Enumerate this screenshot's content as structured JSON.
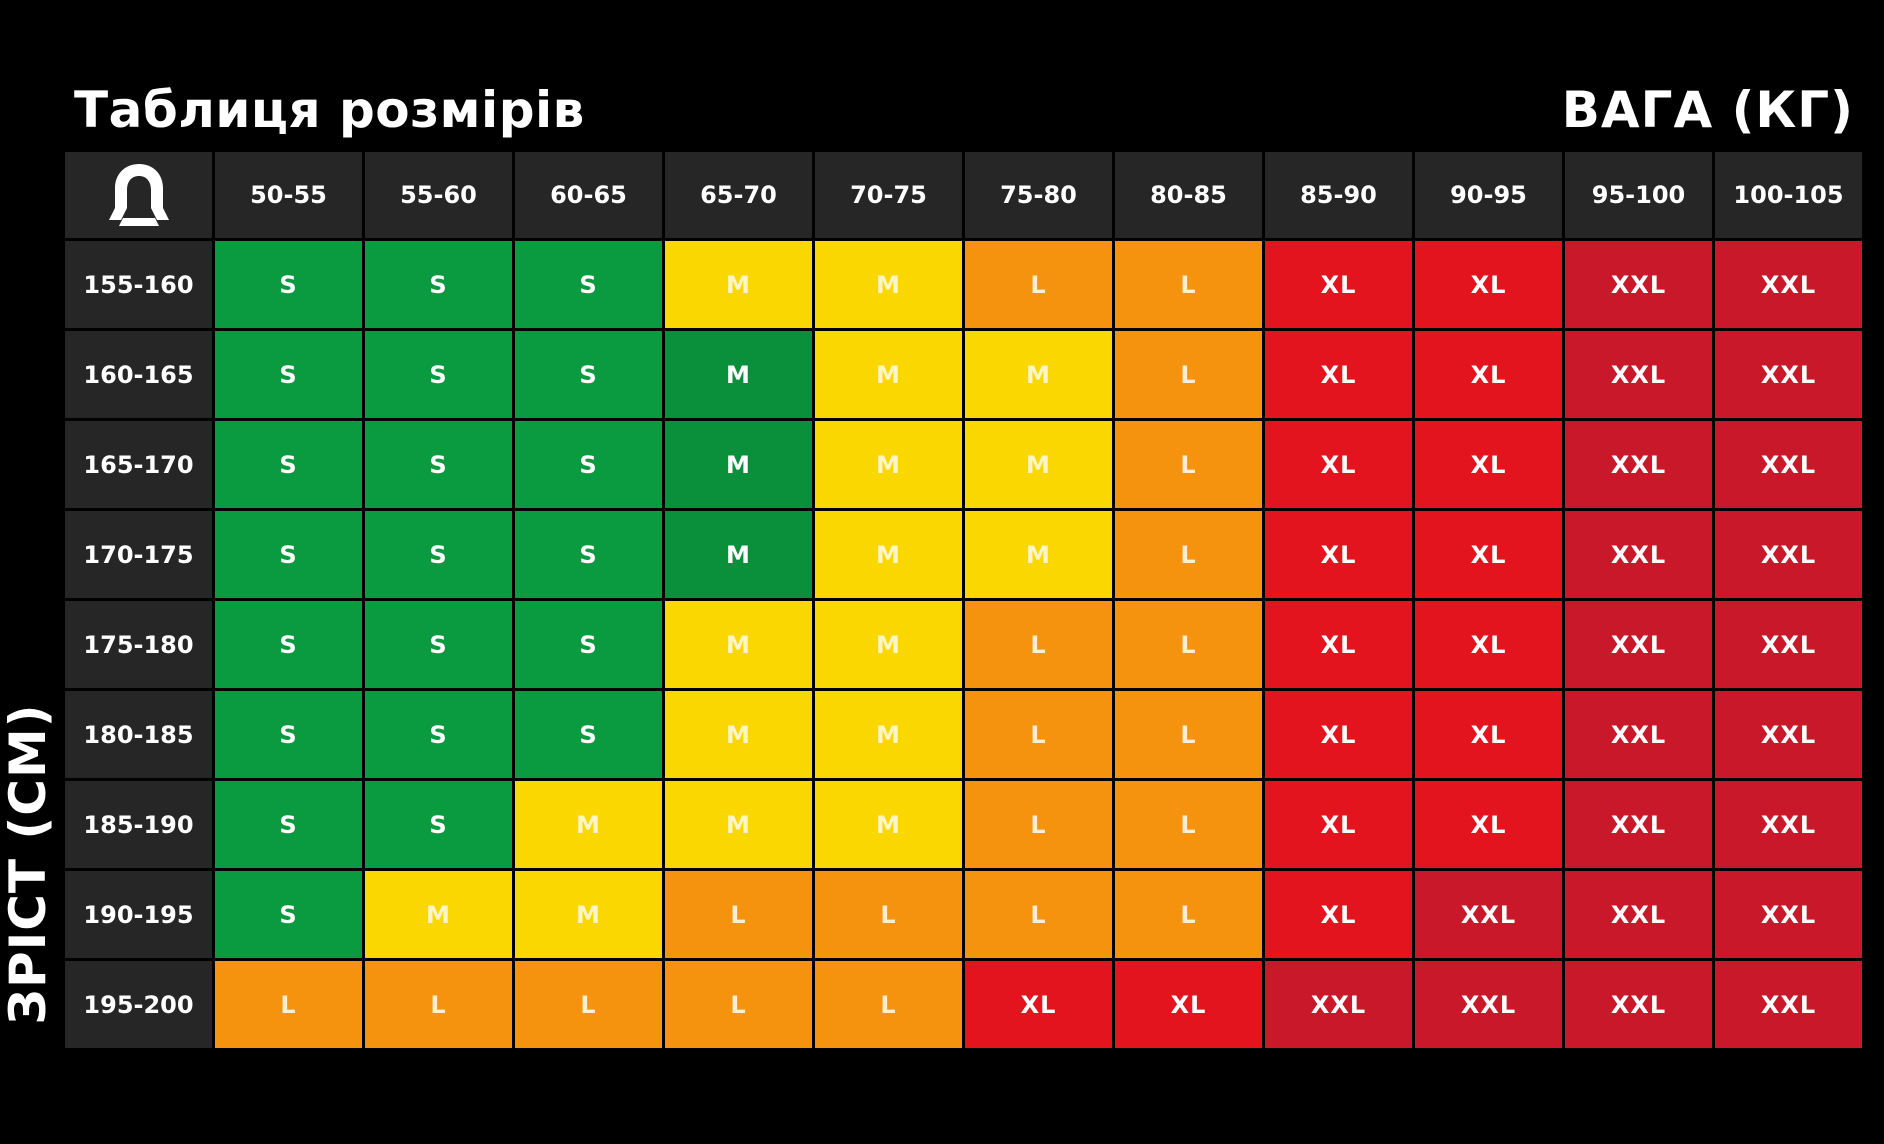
{
  "title": "Таблиця розмірів",
  "weight_label": "ВАГА (КГ)",
  "height_label": "ЗРІСТ (СМ)",
  "icon": "brand-logo-icon",
  "colors": {
    "S": "#0a9a3f",
    "M": "#fbd700",
    "L": "#f5930f",
    "XL": "#e3141e",
    "XXL": "#c8182a",
    "header": "#262626",
    "background": "#000000"
  },
  "weights": [
    "50-55",
    "55-60",
    "60-65",
    "65-70",
    "70-75",
    "75-80",
    "80-85",
    "85-90",
    "90-95",
    "95-100",
    "100-105"
  ],
  "rows": [
    {
      "height": "155-160",
      "sizes": [
        "S",
        "S",
        "S",
        "M",
        "M",
        "L",
        "L",
        "XL",
        "XL",
        "XXL",
        "XXL"
      ]
    },
    {
      "height": "160-165",
      "sizes": [
        "S",
        "S",
        "S",
        "M",
        "M",
        "M",
        "L",
        "XL",
        "XL",
        "XXL",
        "XXL"
      ]
    },
    {
      "height": "165-170",
      "sizes": [
        "S",
        "S",
        "S",
        "M",
        "M",
        "M",
        "L",
        "XL",
        "XL",
        "XXL",
        "XXL"
      ]
    },
    {
      "height": "170-175",
      "sizes": [
        "S",
        "S",
        "S",
        "M",
        "M",
        "M",
        "L",
        "XL",
        "XL",
        "XXL",
        "XXL"
      ]
    },
    {
      "height": "175-180",
      "sizes": [
        "S",
        "S",
        "S",
        "M",
        "M",
        "L",
        "L",
        "XL",
        "XL",
        "XXL",
        "XXL"
      ]
    },
    {
      "height": "180-185",
      "sizes": [
        "S",
        "S",
        "S",
        "M",
        "M",
        "L",
        "L",
        "XL",
        "XL",
        "XXL",
        "XXL"
      ]
    },
    {
      "height": "185-190",
      "sizes": [
        "S",
        "S",
        "M",
        "M",
        "M",
        "L",
        "L",
        "XL",
        "XL",
        "XXL",
        "XXL"
      ]
    },
    {
      "height": "190-195",
      "sizes": [
        "S",
        "M",
        "M",
        "L",
        "L",
        "L",
        "L",
        "XL",
        "XXL",
        "XXL",
        "XXL"
      ]
    },
    {
      "height": "195-200",
      "sizes": [
        "L",
        "L",
        "L",
        "L",
        "L",
        "XL",
        "XL",
        "XXL",
        "XXL",
        "XXL",
        "XXL"
      ]
    }
  ],
  "green_m_cells": [
    [
      1,
      3
    ],
    [
      2,
      3
    ],
    [
      3,
      3
    ]
  ]
}
